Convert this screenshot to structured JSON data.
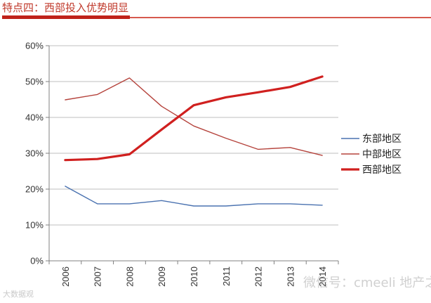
{
  "header": {
    "title": "特点四：西部投入优势明显"
  },
  "watermark": {
    "left": "大数据观",
    "right": "微信号：cmeeli  地产之声"
  },
  "colors": {
    "header_accent": "#c0221a",
    "grid": "#bfbfbf",
    "axis": "#808080"
  },
  "chart_data": {
    "type": "line",
    "title": "",
    "xlabel": "",
    "ylabel": "",
    "categories": [
      "2006",
      "2007",
      "2008",
      "2009",
      "2010",
      "2011",
      "2012",
      "2013",
      "2014"
    ],
    "ylim": [
      0,
      60
    ],
    "yticks": [
      0,
      10,
      20,
      30,
      40,
      50,
      60
    ],
    "ytick_labels": [
      "0%",
      "10%",
      "20%",
      "30%",
      "40%",
      "50%",
      "60%"
    ],
    "grid": true,
    "legend_position": "right",
    "series": [
      {
        "name": "东部地区",
        "color": "#4a72b0",
        "values": [
          20.8,
          15.9,
          15.9,
          16.8,
          15.3,
          15.3,
          15.9,
          15.9,
          15.5
        ]
      },
      {
        "name": "中部地区",
        "color": "#b5433c",
        "values": [
          44.9,
          46.4,
          51.0,
          43.1,
          37.6,
          34.2,
          31.1,
          31.6,
          29.4
        ]
      },
      {
        "name": "西部地区",
        "color": "#d0201f",
        "values": [
          28.1,
          28.4,
          29.7,
          36.6,
          43.4,
          45.6,
          47.0,
          48.5,
          51.4
        ]
      }
    ]
  }
}
